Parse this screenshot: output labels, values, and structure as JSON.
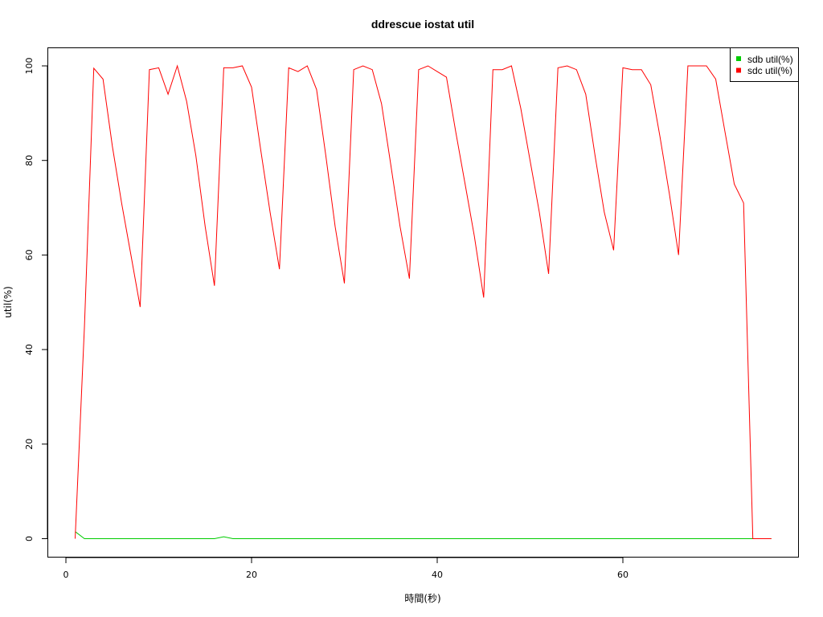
{
  "chart_data": {
    "type": "line",
    "title": "ddrescue iostat util",
    "xlabel": "時間(秒)",
    "ylabel": "util(%)",
    "xlim": [
      0,
      76
    ],
    "ylim": [
      0,
      100
    ],
    "x_ticks": [
      0,
      20,
      40,
      60
    ],
    "y_ticks": [
      0,
      20,
      40,
      60,
      80,
      100
    ],
    "grid": false,
    "legend_position": "top-right",
    "series": [
      {
        "name": "sdb util(%)",
        "color": "#00cc00",
        "x": [
          1,
          2,
          3,
          10,
          16,
          17,
          18,
          30,
          50,
          74,
          75,
          76
        ],
        "y": [
          1.5,
          0,
          0,
          0,
          0,
          0.4,
          0,
          0,
          0,
          0,
          0,
          0
        ]
      },
      {
        "name": "sdc util(%)",
        "color": "#ff0000",
        "x": [
          1,
          2,
          3,
          4,
          5,
          6,
          7,
          8,
          9,
          10,
          11,
          12,
          13,
          14,
          15,
          16,
          17,
          18,
          19,
          20,
          21,
          22,
          23,
          24,
          25,
          26,
          27,
          28,
          29,
          30,
          31,
          32,
          33,
          34,
          35,
          36,
          37,
          38,
          39,
          40,
          41,
          42,
          43,
          44,
          45,
          46,
          47,
          48,
          49,
          50,
          51,
          52,
          53,
          54,
          55,
          56,
          57,
          58,
          59,
          60,
          61,
          62,
          63,
          64,
          65,
          66,
          67,
          68,
          69,
          70,
          71,
          72,
          73,
          74,
          75,
          76
        ],
        "y": [
          0,
          45,
          99.5,
          97.2,
          83,
          71,
          60,
          49,
          99.2,
          99.6,
          94,
          100,
          92.5,
          81,
          66,
          53.5,
          99.6,
          99.6,
          100,
          95.5,
          82,
          69,
          57,
          99.6,
          98.8,
          100,
          95,
          81,
          66,
          54,
          99.2,
          100,
          99.2,
          92,
          79,
          66,
          55,
          99.2,
          100,
          98.8,
          97.6,
          86,
          75,
          64,
          51,
          99.2,
          99.2,
          100,
          91,
          80,
          69,
          56,
          99.6,
          100,
          99.2,
          94,
          81,
          69,
          61,
          99.6,
          99.2,
          99.2,
          96,
          85,
          73,
          60,
          100,
          100,
          100,
          97.2,
          86,
          75,
          71,
          0,
          0,
          0
        ]
      }
    ]
  }
}
